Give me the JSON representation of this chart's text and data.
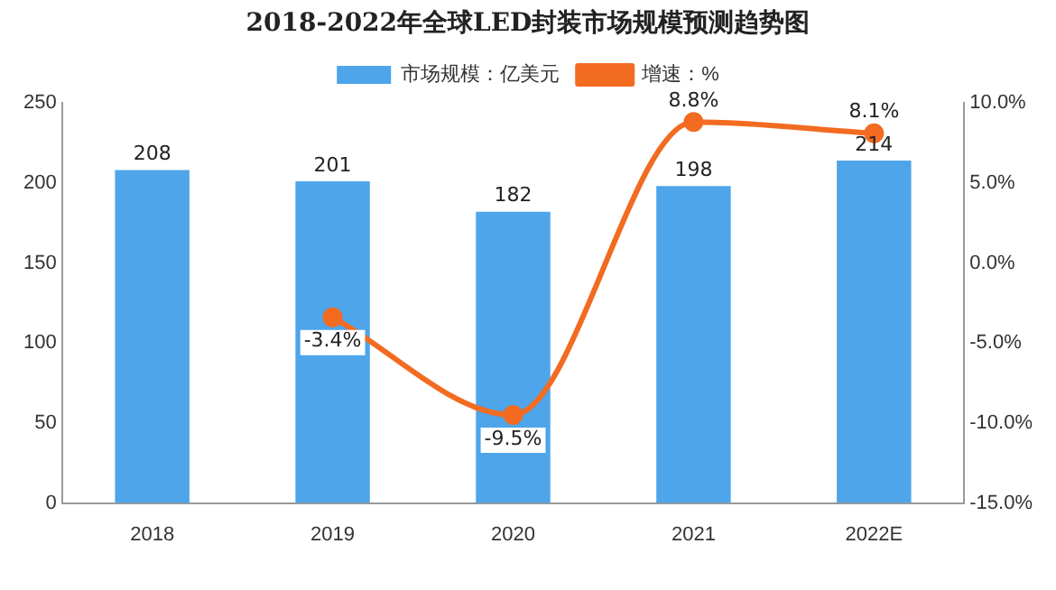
{
  "chart_data": {
    "type": "bar",
    "title": "2018-2022年全球LED封装市场规模预测趋势图",
    "categories": [
      "2018",
      "2019",
      "2020",
      "2021",
      "2022E"
    ],
    "series": [
      {
        "name": "市场规模：亿美元",
        "color": "#4ea5ea",
        "values": [
          208,
          201,
          182,
          198,
          214
        ],
        "value_labels": [
          "208",
          "201",
          "182",
          "198",
          "214"
        ]
      },
      {
        "name": "增速：%",
        "type": "line",
        "axis": "y2",
        "color": "#f26b21",
        "values": [
          null,
          -3.4,
          -9.5,
          8.8,
          8.1
        ],
        "value_labels": [
          null,
          "-3.4%",
          "-9.5%",
          "8.8%",
          "8.1%"
        ]
      }
    ],
    "ylim": [
      0,
      250
    ],
    "yticks": [
      0,
      50,
      100,
      150,
      200,
      250
    ],
    "y2lim": [
      -15,
      10
    ],
    "y2ticks": [
      {
        "value": -15,
        "label": "-15.0%"
      },
      {
        "value": -10,
        "label": "-10.0%"
      },
      {
        "value": -5,
        "label": "-5.0%"
      },
      {
        "value": 0,
        "label": "0.0%"
      },
      {
        "value": 5,
        "label": "5.0%"
      },
      {
        "value": 10,
        "label": "10.0%"
      }
    ],
    "legend": "top",
    "marker": "circle",
    "grid": false
  }
}
